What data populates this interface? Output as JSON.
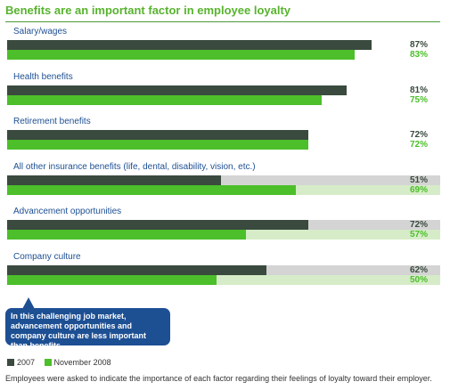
{
  "title": "Benefits are an important factor in employee loyalty",
  "colors": {
    "title": "#58b32e",
    "series_2007": "#3a4a3e",
    "series_nov2008": "#4cbf2a",
    "track_dark": "#d4d4d4",
    "track_light": "#d6ecc8",
    "label": "#1d4f93",
    "callout_bg": "#1d4f93"
  },
  "chart_data": {
    "type": "bar",
    "orientation": "horizontal",
    "title": "Benefits are an important factor in employee loyalty",
    "categories": [
      "Salary/wages",
      "Health benefits",
      "Retirement benefits",
      "All other insurance benefits (life, dental, disability, vision, etc.)",
      "Advancement opportunities",
      "Company culture"
    ],
    "series": [
      {
        "name": "2007",
        "values": [
          87,
          81,
          72,
          51,
          72,
          62
        ]
      },
      {
        "name": "November 2008",
        "values": [
          83,
          75,
          72,
          69,
          57,
          50
        ]
      }
    ],
    "value_labels": {
      "2007": [
        "87%",
        "81%",
        "72%",
        "51%",
        "72%",
        "62%"
      ],
      "November 2008": [
        "83%",
        "75%",
        "72%",
        "69%",
        "57%",
        "50%"
      ]
    },
    "ylim": [
      0,
      100
    ],
    "xlabel": "",
    "ylabel": "",
    "grid": false,
    "legend_position": "bottom-left"
  },
  "callout": {
    "text": "In this challenging job market, advancement opportunities and company culture are less important than benefits."
  },
  "legend": {
    "items": [
      {
        "label": "2007"
      },
      {
        "label": "November 2008"
      }
    ]
  },
  "footnote": "Employees were asked to indicate the importance of each factor regarding their feelings of loyalty toward their employer."
}
